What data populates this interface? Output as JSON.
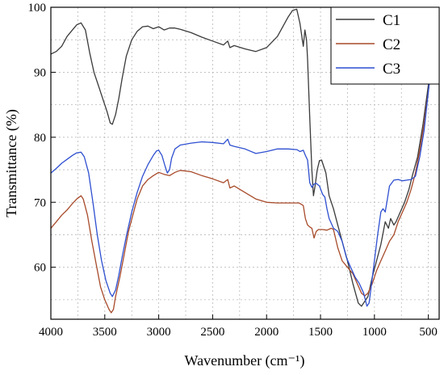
{
  "chart_data": {
    "type": "line",
    "title": "",
    "xlabel": "Wavenumber (cm⁻¹)",
    "ylabel": "Transmittance (%)",
    "xlim": [
      4000,
      400
    ],
    "ylim": [
      52,
      100
    ],
    "x_reversed": true,
    "xticks": [
      4000,
      3500,
      3000,
      2500,
      2000,
      1500,
      1000,
      500
    ],
    "yticks": [
      60,
      70,
      80,
      90,
      100
    ],
    "grid": true,
    "legend_position": "top-right",
    "series": [
      {
        "name": "C1",
        "color": "#3a3a3a",
        "points": [
          [
            4000,
            92.8
          ],
          [
            3950,
            93.2
          ],
          [
            3900,
            94
          ],
          [
            3850,
            95.5
          ],
          [
            3800,
            96.5
          ],
          [
            3760,
            97.3
          ],
          [
            3720,
            97.6
          ],
          [
            3680,
            96.5
          ],
          [
            3640,
            93
          ],
          [
            3600,
            90
          ],
          [
            3560,
            88
          ],
          [
            3520,
            86
          ],
          [
            3480,
            84
          ],
          [
            3450,
            82.2
          ],
          [
            3430,
            82
          ],
          [
            3400,
            83.5
          ],
          [
            3370,
            86
          ],
          [
            3340,
            89
          ],
          [
            3300,
            92.5
          ],
          [
            3250,
            95
          ],
          [
            3200,
            96.3
          ],
          [
            3150,
            97
          ],
          [
            3100,
            97.1
          ],
          [
            3050,
            96.7
          ],
          [
            3000,
            97
          ],
          [
            2950,
            96.5
          ],
          [
            2900,
            96.8
          ],
          [
            2850,
            96.8
          ],
          [
            2800,
            96.6
          ],
          [
            2700,
            96.1
          ],
          [
            2600,
            95.4
          ],
          [
            2500,
            94.8
          ],
          [
            2400,
            94.2
          ],
          [
            2360,
            94.8
          ],
          [
            2340,
            93.8
          ],
          [
            2300,
            94.1
          ],
          [
            2200,
            93.6
          ],
          [
            2100,
            93.2
          ],
          [
            2000,
            93.8
          ],
          [
            1900,
            95.5
          ],
          [
            1850,
            97
          ],
          [
            1800,
            98.5
          ],
          [
            1760,
            99.5
          ],
          [
            1720,
            99.7
          ],
          [
            1690,
            97.5
          ],
          [
            1660,
            94
          ],
          [
            1645,
            96.5
          ],
          [
            1630,
            95
          ],
          [
            1620,
            92
          ],
          [
            1600,
            83
          ],
          [
            1580,
            75
          ],
          [
            1565,
            71
          ],
          [
            1550,
            72.5
          ],
          [
            1530,
            75
          ],
          [
            1510,
            76.4
          ],
          [
            1490,
            76.5
          ],
          [
            1470,
            75.5
          ],
          [
            1450,
            74.5
          ],
          [
            1420,
            71
          ],
          [
            1380,
            69
          ],
          [
            1340,
            66.5
          ],
          [
            1300,
            64
          ],
          [
            1250,
            61
          ],
          [
            1200,
            57.5
          ],
          [
            1150,
            54.5
          ],
          [
            1120,
            54
          ],
          [
            1100,
            54.5
          ],
          [
            1060,
            55.5
          ],
          [
            1020,
            58.5
          ],
          [
            980,
            61
          ],
          [
            940,
            63.5
          ],
          [
            900,
            67
          ],
          [
            870,
            66
          ],
          [
            850,
            67.5
          ],
          [
            820,
            66.5
          ],
          [
            800,
            67
          ],
          [
            760,
            68.5
          ],
          [
            720,
            70
          ],
          [
            680,
            72
          ],
          [
            650,
            74
          ],
          [
            600,
            77
          ],
          [
            550,
            82
          ],
          [
            500,
            88
          ],
          [
            450,
            95
          ],
          [
            420,
            99
          ]
        ]
      },
      {
        "name": "C2",
        "color": "#a84a2a",
        "points": [
          [
            4000,
            66
          ],
          [
            3950,
            67
          ],
          [
            3900,
            68
          ],
          [
            3850,
            68.8
          ],
          [
            3800,
            69.8
          ],
          [
            3760,
            70.5
          ],
          [
            3720,
            71
          ],
          [
            3700,
            70.5
          ],
          [
            3660,
            68
          ],
          [
            3620,
            64
          ],
          [
            3580,
            60.5
          ],
          [
            3540,
            57
          ],
          [
            3500,
            55
          ],
          [
            3460,
            53.5
          ],
          [
            3440,
            53
          ],
          [
            3420,
            53.5
          ],
          [
            3400,
            55.5
          ],
          [
            3360,
            58.5
          ],
          [
            3320,
            62
          ],
          [
            3280,
            65.5
          ],
          [
            3240,
            68
          ],
          [
            3200,
            70.5
          ],
          [
            3150,
            72.5
          ],
          [
            3100,
            73.5
          ],
          [
            3050,
            74.1
          ],
          [
            3000,
            74.6
          ],
          [
            2950,
            74.3
          ],
          [
            2900,
            74.1
          ],
          [
            2850,
            74.6
          ],
          [
            2800,
            74.9
          ],
          [
            2700,
            74.7
          ],
          [
            2600,
            74.1
          ],
          [
            2500,
            73.6
          ],
          [
            2400,
            73
          ],
          [
            2360,
            73.5
          ],
          [
            2340,
            72.2
          ],
          [
            2300,
            72.5
          ],
          [
            2200,
            71.5
          ],
          [
            2100,
            70.5
          ],
          [
            2000,
            70
          ],
          [
            1900,
            69.9
          ],
          [
            1800,
            69.9
          ],
          [
            1700,
            69.9
          ],
          [
            1660,
            69.5
          ],
          [
            1640,
            67.5
          ],
          [
            1620,
            66.5
          ],
          [
            1600,
            66.2
          ],
          [
            1580,
            66
          ],
          [
            1560,
            64.5
          ],
          [
            1540,
            65.5
          ],
          [
            1520,
            65.8
          ],
          [
            1480,
            65.8
          ],
          [
            1440,
            65.7
          ],
          [
            1400,
            66
          ],
          [
            1380,
            65.8
          ],
          [
            1340,
            63
          ],
          [
            1300,
            61
          ],
          [
            1250,
            60
          ],
          [
            1200,
            59
          ],
          [
            1160,
            57.5
          ],
          [
            1120,
            56
          ],
          [
            1090,
            55.6
          ],
          [
            1060,
            56
          ],
          [
            1020,
            57.5
          ],
          [
            980,
            59.5
          ],
          [
            940,
            61
          ],
          [
            900,
            62.5
          ],
          [
            860,
            64
          ],
          [
            820,
            65
          ],
          [
            780,
            67
          ],
          [
            740,
            68.5
          ],
          [
            700,
            70
          ],
          [
            660,
            72
          ],
          [
            620,
            74.5
          ],
          [
            580,
            78
          ],
          [
            540,
            82
          ],
          [
            500,
            87
          ],
          [
            460,
            93
          ],
          [
            420,
            99
          ]
        ]
      },
      {
        "name": "C3",
        "color": "#2e4fd0",
        "points": [
          [
            4000,
            74.5
          ],
          [
            3950,
            75.2
          ],
          [
            3900,
            76
          ],
          [
            3850,
            76.6
          ],
          [
            3800,
            77.2
          ],
          [
            3760,
            77.6
          ],
          [
            3720,
            77.7
          ],
          [
            3690,
            77
          ],
          [
            3650,
            74.5
          ],
          [
            3610,
            70
          ],
          [
            3570,
            65
          ],
          [
            3530,
            61
          ],
          [
            3490,
            58
          ],
          [
            3450,
            56
          ],
          [
            3430,
            55.5
          ],
          [
            3400,
            56.5
          ],
          [
            3370,
            58.8
          ],
          [
            3340,
            61.5
          ],
          [
            3300,
            64.8
          ],
          [
            3250,
            68.5
          ],
          [
            3200,
            71.5
          ],
          [
            3150,
            74
          ],
          [
            3100,
            75.8
          ],
          [
            3050,
            77.2
          ],
          [
            3020,
            77.9
          ],
          [
            3000,
            78
          ],
          [
            2970,
            77.2
          ],
          [
            2940,
            75.5
          ],
          [
            2920,
            74.5
          ],
          [
            2900,
            75
          ],
          [
            2880,
            76.8
          ],
          [
            2850,
            78.2
          ],
          [
            2800,
            78.8
          ],
          [
            2700,
            79.1
          ],
          [
            2600,
            79.3
          ],
          [
            2500,
            79.2
          ],
          [
            2400,
            79
          ],
          [
            2360,
            79.7
          ],
          [
            2340,
            78.8
          ],
          [
            2300,
            78.6
          ],
          [
            2200,
            78.2
          ],
          [
            2100,
            77.5
          ],
          [
            2000,
            77.8
          ],
          [
            1900,
            78.2
          ],
          [
            1800,
            78.2
          ],
          [
            1720,
            78.1
          ],
          [
            1690,
            77.8
          ],
          [
            1660,
            78
          ],
          [
            1640,
            77.2
          ],
          [
            1620,
            76.5
          ],
          [
            1600,
            73
          ],
          [
            1580,
            72.3
          ],
          [
            1560,
            72.8
          ],
          [
            1540,
            72.9
          ],
          [
            1510,
            72.5
          ],
          [
            1480,
            71.2
          ],
          [
            1460,
            70.8
          ],
          [
            1440,
            69
          ],
          [
            1420,
            67.5
          ],
          [
            1380,
            66
          ],
          [
            1340,
            65.5
          ],
          [
            1300,
            64
          ],
          [
            1260,
            61.5
          ],
          [
            1220,
            60
          ],
          [
            1180,
            58.5
          ],
          [
            1140,
            57.5
          ],
          [
            1100,
            56
          ],
          [
            1070,
            54
          ],
          [
            1050,
            54.5
          ],
          [
            1030,
            57
          ],
          [
            1000,
            61
          ],
          [
            970,
            65
          ],
          [
            940,
            68.5
          ],
          [
            920,
            69
          ],
          [
            900,
            68.5
          ],
          [
            880,
            70.5
          ],
          [
            860,
            72.5
          ],
          [
            820,
            73.4
          ],
          [
            780,
            73.5
          ],
          [
            740,
            73.3
          ],
          [
            700,
            73.4
          ],
          [
            660,
            73.5
          ],
          [
            620,
            74
          ],
          [
            580,
            77
          ],
          [
            540,
            81
          ],
          [
            500,
            87
          ],
          [
            460,
            93
          ],
          [
            420,
            99.5
          ]
        ]
      }
    ]
  }
}
